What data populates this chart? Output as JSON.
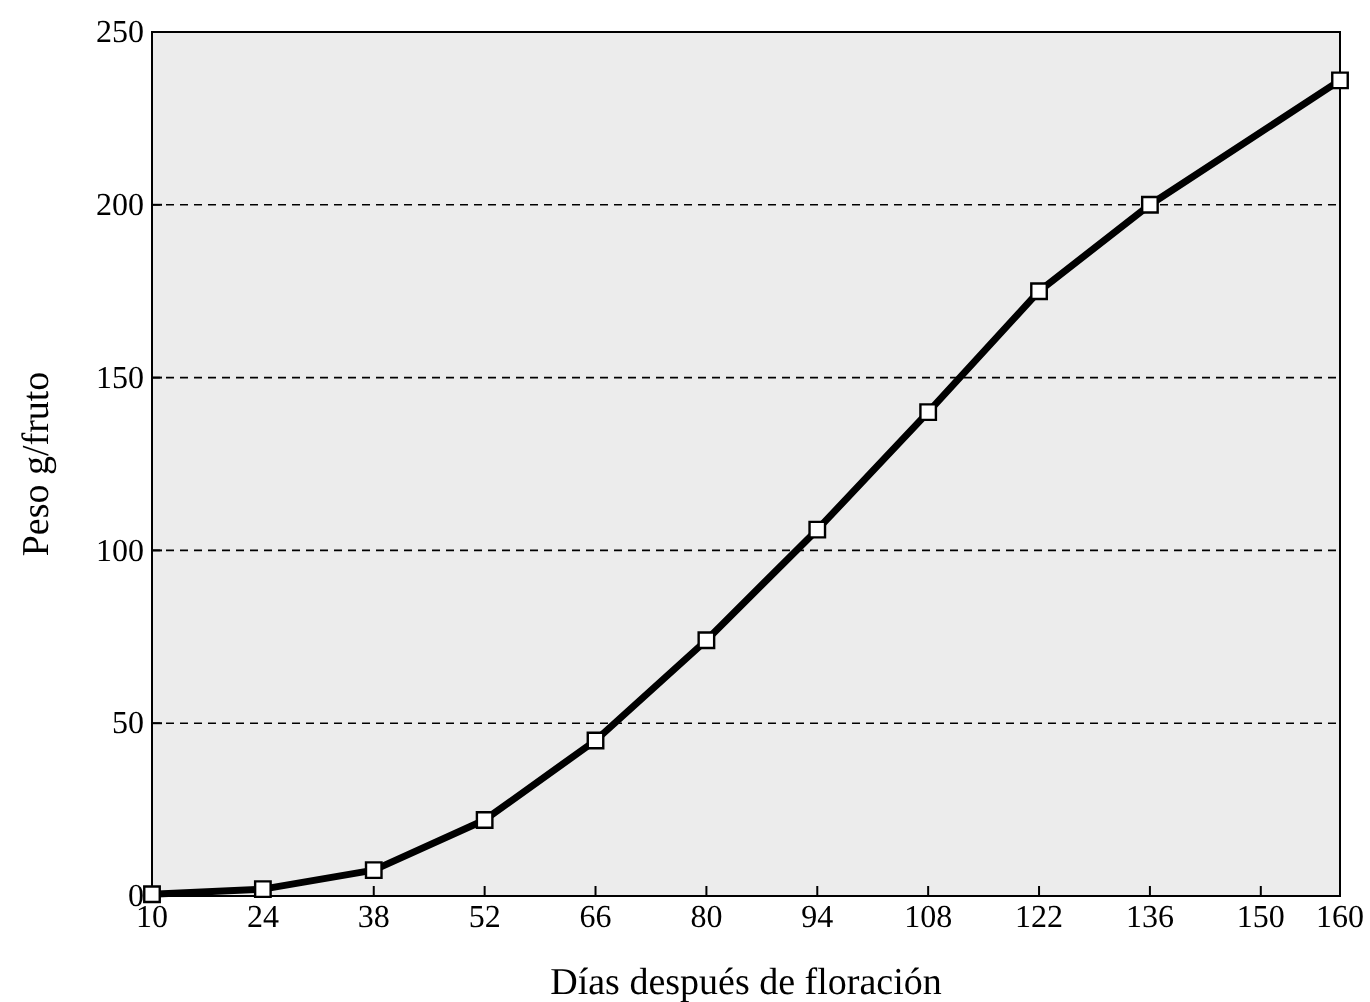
{
  "chart_data": {
    "type": "line",
    "xlabel": "Días después de floración",
    "ylabel": "Peso g/fruto",
    "x": [
      10,
      24,
      38,
      52,
      66,
      80,
      94,
      108,
      122,
      136,
      160
    ],
    "series": [
      {
        "color": "#000000",
        "values": [
          0.5,
          2,
          7.5,
          22,
          45,
          74,
          106,
          140,
          175,
          200,
          236
        ]
      }
    ],
    "xlim": [
      10,
      160
    ],
    "xticks": [
      10,
      24,
      38,
      52,
      66,
      80,
      94,
      108,
      122,
      136,
      150,
      160
    ],
    "ylim": [
      0,
      250
    ],
    "yticks": [
      0,
      50,
      100,
      150,
      200,
      250
    ],
    "grid": "y",
    "marker": "square",
    "line_style": "solid"
  }
}
